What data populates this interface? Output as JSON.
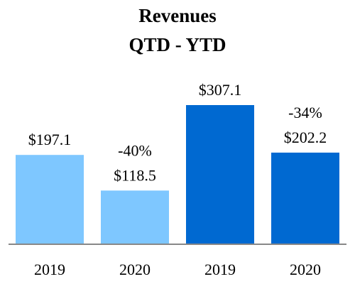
{
  "chart_data": {
    "type": "bar",
    "title": "Revenues",
    "subtitle": "QTD - YTD",
    "categories": [
      "2019",
      "2020",
      "2019",
      "2020"
    ],
    "values": [
      197.1,
      118.5,
      307.1,
      202.2
    ],
    "value_labels": [
      "$197.1",
      "$118.5",
      "$307.1",
      "$202.2"
    ],
    "change_labels": [
      "",
      "-40%",
      "",
      "-34%"
    ],
    "bar_colors": [
      "#7EC7FF",
      "#7EC7FF",
      "#0069D1",
      "#0069D1"
    ],
    "axis_color": "#888888",
    "ylim": [
      0,
      307.1
    ],
    "xlabel": "",
    "ylabel": "",
    "grid": false,
    "legend": "none"
  }
}
